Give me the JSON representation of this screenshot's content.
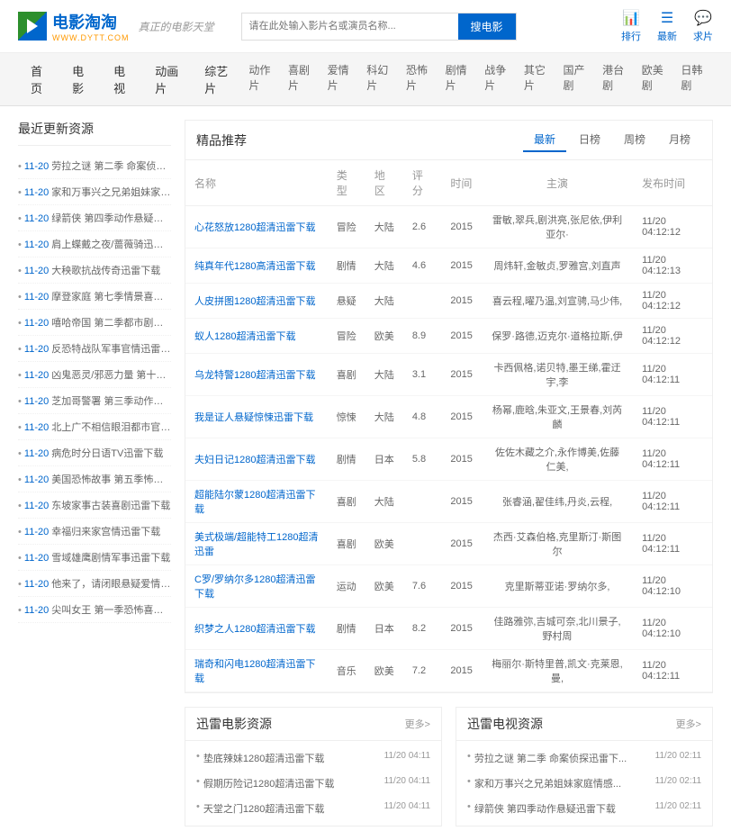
{
  "logo": {
    "title": "电影淘淘",
    "sub": "WWW.DYTT.COM"
  },
  "tagline": "真正的电影天堂",
  "search": {
    "placeholder": "请在此处输入影片名或演员名称...",
    "button": "搜电影"
  },
  "headerLinks": [
    {
      "icon": "📊",
      "label": "排行"
    },
    {
      "icon": "☰",
      "label": "最新"
    },
    {
      "icon": "💬",
      "label": "求片"
    }
  ],
  "navMain": [
    "首页",
    "电影",
    "电视",
    "动画片",
    "综艺片"
  ],
  "navSub": [
    "动作片",
    "喜剧片",
    "爱情片",
    "科幻片",
    "恐怖片",
    "剧情片",
    "战争片",
    "其它片",
    "国产剧",
    "港台剧",
    "欧美剧",
    "日韩剧"
  ],
  "sidebar": {
    "title": "最近更新资源",
    "items": [
      {
        "date": "11-20",
        "title": "劳拉之谜 第二季 命案侦探迅雷"
      },
      {
        "date": "11-20",
        "title": "家和万事兴之兄弟姐妹家庭情感..."
      },
      {
        "date": "11-20",
        "title": "绿箭侠 第四季动作悬疑迅雷下"
      },
      {
        "date": "11-20",
        "title": "肩上蝶戴之夜/蔷薇骑迅雷下载"
      },
      {
        "date": "11-20",
        "title": "大秧歌抗战传奇迅雷下载"
      },
      {
        "date": "11-20",
        "title": "摩登家庭 第七季情景喜剧迅雷"
      },
      {
        "date": "11-20",
        "title": "嘻哈帝国 第二季都市剧情迅雷"
      },
      {
        "date": "11-20",
        "title": "反恐特战队军事官情迅雷下载"
      },
      {
        "date": "11-20",
        "title": "凶鬼恶灵/邪恶力量 第十一季魔..."
      },
      {
        "date": "11-20",
        "title": "芝加哥警署 第三季动作剧情迅"
      },
      {
        "date": "11-20",
        "title": "北上广不相信眼泪都市官情迅雷..."
      },
      {
        "date": "11-20",
        "title": "病危时分日语TV迅雷下载"
      },
      {
        "date": "11-20",
        "title": "美国恐怖故事 第五季怖悬疑"
      },
      {
        "date": "11-20",
        "title": "东坡家事古装喜剧迅雷下载"
      },
      {
        "date": "11-20",
        "title": "幸福归来家宫情迅雷下载"
      },
      {
        "date": "11-20",
        "title": "雪域雄鹰剧情军事迅雷下载"
      },
      {
        "date": "11-20",
        "title": "他来了，请闭眼悬疑爱情迅雷下..."
      },
      {
        "date": "11-20",
        "title": "尖叫女王 第一季恐怖喜剧迅雷"
      }
    ]
  },
  "featured": {
    "title": "精品推荐",
    "tabs": [
      "最新",
      "日榜",
      "周榜",
      "月榜"
    ],
    "columns": [
      "名称",
      "类型",
      "地区",
      "评分",
      "时间",
      "主演",
      "发布时间"
    ],
    "rows": [
      [
        "心花怒放1280超清迅雷下载",
        "冒险",
        "大陆",
        "2.6",
        "2015",
        "雷敏,翠兵,剧洪亮,张尼依,伊利亚尔·",
        "11/20 04:12:12"
      ],
      [
        "纯真年代1280高清迅雷下载",
        "剧情",
        "大陆",
        "4.6",
        "2015",
        "周炜轩,金敏贞,罗雅宫,刘直声",
        "11/20 04:12:13"
      ],
      [
        "人皮拼图1280超清迅雷下载",
        "悬疑",
        "大陆",
        "",
        "2015",
        "喜云程,曜乃温,刘宣骋,马少伟,",
        "11/20 04:12:12"
      ],
      [
        "蚁人1280超清迅雷下载",
        "冒险",
        "欧美",
        "8.9",
        "2015",
        "保罗·路德,迈克尔·道格拉斯,伊",
        "11/20 04:12:12"
      ],
      [
        "乌龙特警1280超清迅雷下载",
        "喜剧",
        "大陆",
        "3.1",
        "2015",
        "卡西佩格,诺贝特,墨王绨,霍迂宇,李",
        "11/20 04:12:11"
      ],
      [
        "我是证人悬疑惊悚迅雷下载",
        "惊悚",
        "大陆",
        "4.8",
        "2015",
        "杨幂,鹿晗,朱亚文,王景春,刘芮麟",
        "11/20 04:12:11"
      ],
      [
        "夫妇日记1280超清迅雷下载",
        "剧情",
        "日本",
        "5.8",
        "2015",
        "佐佐木藏之介,永作博美,佐藤仁美,",
        "11/20 04:12:11"
      ],
      [
        "超能陆尔蒙1280超清迅雷下载",
        "喜剧",
        "大陆",
        "",
        "2015",
        "张睿涵,翟佳纬,丹炎,云程,",
        "11/20 04:12:11"
      ],
      [
        "美式极端/超能特工1280超清迅雷",
        "喜剧",
        "欧美",
        "",
        "2015",
        "杰西·艾森伯格,克里斯汀·斯图尔",
        "11/20 04:12:11"
      ],
      [
        "C罗/罗纳尔多1280超清迅雷下载",
        "运动",
        "欧美",
        "7.6",
        "2015",
        "克里斯蒂亚诺·罗纳尔多,",
        "11/20 04:12:10"
      ],
      [
        "织梦之人1280超清迅雷下载",
        "剧情",
        "日本",
        "8.2",
        "2015",
        "佳路雅弥,吉城可奈,北川景子,野村周",
        "11/20 04:12:10"
      ],
      [
        "瑞奇和闪电1280超清迅雷下载",
        "音乐",
        "欧美",
        "7.2",
        "2015",
        "梅丽尔·斯特里普,凯文·克莱恩,曼,",
        "11/20 04:12:11"
      ]
    ]
  },
  "bottomLeft": {
    "title": "迅雷电影资源",
    "more": "更多>",
    "items": [
      {
        "title": "垫底辣妹1280超清迅雷下载",
        "time": "11/20 04:11"
      },
      {
        "title": "假期历险记1280超清迅雷下载",
        "time": "11/20 04:11"
      },
      {
        "title": "天堂之门1280超清迅雷下载",
        "time": "11/20 04:11"
      }
    ]
  },
  "bottomRight": {
    "title": "迅雷电视资源",
    "more": "更多>",
    "items": [
      {
        "title": "劳拉之谜 第二季 命案侦探迅雷下...",
        "time": "11/20 02:11"
      },
      {
        "title": "家和万事兴之兄弟姐妹家庭情感...",
        "time": "11/20 02:11"
      },
      {
        "title": "绿箭侠 第四季动作悬疑迅雷下载",
        "time": "11/20 02:11"
      }
    ]
  }
}
